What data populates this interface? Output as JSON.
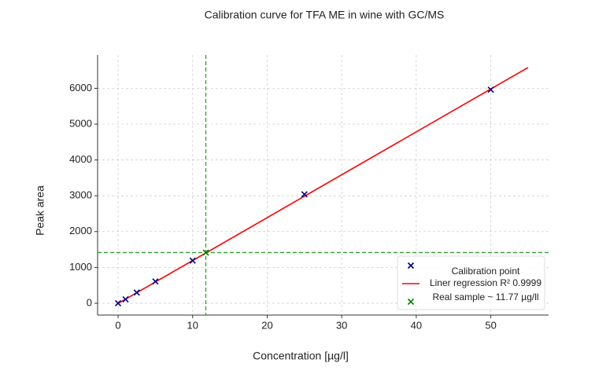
{
  "chart_data": {
    "type": "scatter",
    "title": "Calibration curve for TFA ME in wine with GC/MS",
    "x_label": "Concentration [µg/l]",
    "y_label": "Peak area",
    "xlim": [
      -2.75,
      57.75
    ],
    "ylim": [
      -330,
      6930
    ],
    "xticks": [
      0,
      10,
      20,
      30,
      40,
      50
    ],
    "yticks": [
      0,
      1000,
      2000,
      3000,
      4000,
      5000,
      6000
    ],
    "grid": true,
    "legend": "lower right",
    "series": [
      {
        "name": "Calibration point",
        "color": "#00008b",
        "style": "marker",
        "x": [
          0,
          1,
          2.5,
          5,
          10,
          25,
          50
        ],
        "values": [
          0,
          110,
          300,
          610,
          1190,
          3040,
          5960
        ]
      },
      {
        "name": "Liner regression R² 0.9999",
        "color": "#ff0000",
        "style": "line",
        "x": [
          0,
          55
        ],
        "values": [
          -5,
          6580
        ]
      },
      {
        "name": "Real sample ~ 11.77 µg/ll",
        "color": "#008000",
        "style": "marker",
        "guides": true,
        "x": [
          11.77
        ],
        "values": [
          1415
        ]
      }
    ]
  }
}
